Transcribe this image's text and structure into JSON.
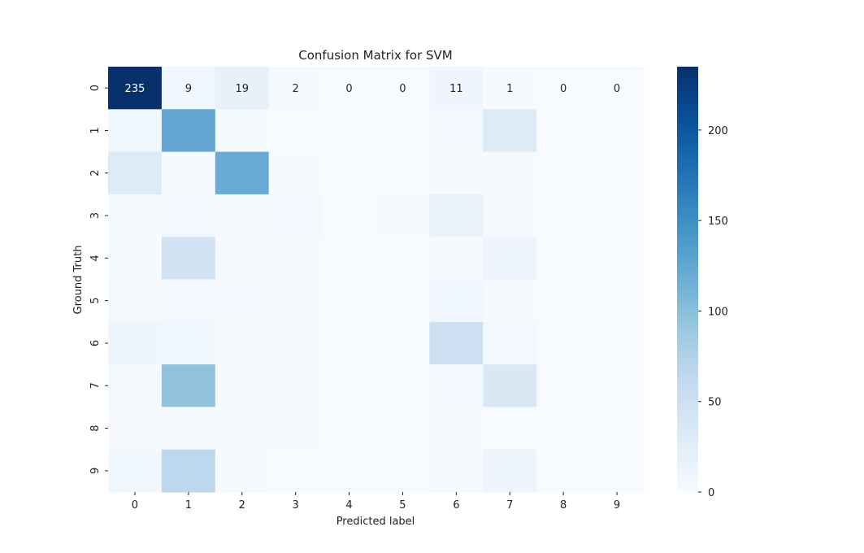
{
  "chart_data": {
    "type": "heatmap",
    "title": "Confusion Matrix for SVM",
    "xlabel": "Predicted label",
    "ylabel": "Ground Truth",
    "x_categories": [
      "0",
      "1",
      "2",
      "3",
      "4",
      "5",
      "6",
      "7",
      "8",
      "9"
    ],
    "y_categories": [
      "0",
      "1",
      "2",
      "3",
      "4",
      "5",
      "6",
      "7",
      "8",
      "9"
    ],
    "matrix": [
      [
        235,
        9,
        19,
        2,
        0,
        0,
        11,
        1,
        0,
        0
      ],
      [
        8,
        125,
        2,
        0,
        0,
        0,
        5,
        30,
        0,
        0
      ],
      [
        30,
        2,
        120,
        1,
        0,
        0,
        2,
        2,
        0,
        0
      ],
      [
        2,
        6,
        3,
        6,
        0,
        1,
        17,
        1,
        0,
        0
      ],
      [
        2,
        45,
        2,
        1,
        0,
        0,
        3,
        12,
        0,
        0
      ],
      [
        3,
        5,
        6,
        2,
        0,
        0,
        9,
        2,
        0,
        0
      ],
      [
        10,
        8,
        1,
        2,
        0,
        0,
        50,
        5,
        0,
        0
      ],
      [
        4,
        95,
        1,
        1,
        0,
        0,
        5,
        35,
        0,
        0
      ],
      [
        1,
        2,
        1,
        2,
        0,
        0,
        1,
        0,
        0,
        0
      ],
      [
        8,
        65,
        2,
        0,
        0,
        0,
        3,
        12,
        0,
        0
      ]
    ],
    "annotated_rows": [
      0
    ],
    "colormap": "Blues",
    "colorbar": {
      "min": 0,
      "max": 235,
      "ticks": [
        0,
        50,
        100,
        150,
        200
      ]
    }
  }
}
